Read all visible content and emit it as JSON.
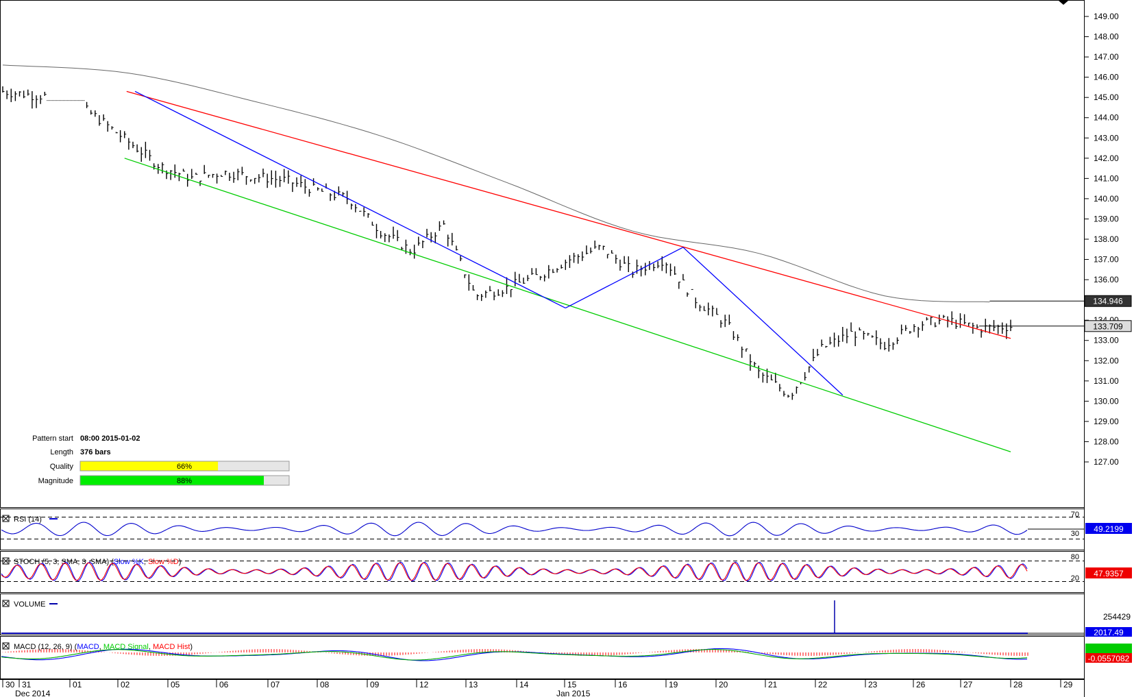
{
  "chart_data": {
    "type": "line",
    "instrument_note": "",
    "price_axis": {
      "ticks": [
        "149.00",
        "148.00",
        "147.00",
        "146.00",
        "145.00",
        "144.00",
        "143.00",
        "142.00",
        "141.00",
        "140.00",
        "139.00",
        "138.00",
        "137.00",
        "136.00",
        "135.00",
        "134.00",
        "133.00",
        "132.00",
        "131.00",
        "130.00",
        "129.00",
        "128.00",
        "127.00"
      ],
      "range": [
        126.0,
        149.6
      ]
    },
    "price_markers": [
      {
        "label": "134.946",
        "value": 134.946,
        "style": "dark"
      },
      {
        "label": "133.709",
        "value": 133.709,
        "style": "light"
      }
    ],
    "date_axis": {
      "labels": [
        "30",
        "31",
        "01",
        "02",
        "05",
        "06",
        "07",
        "08",
        "09",
        "12",
        "13",
        "14",
        "15",
        "16",
        "19",
        "20",
        "21",
        "22",
        "23",
        "26",
        "27",
        "28",
        "29"
      ],
      "month_labels": [
        "Dec 2014",
        "Jan 2015"
      ]
    },
    "series": [
      {
        "name": "Price (bars)",
        "x": [
          0,
          15,
          30,
          45,
          60,
          75,
          90,
          105,
          120,
          135,
          150,
          165,
          180,
          195,
          210,
          225,
          240,
          255,
          270,
          285,
          300,
          315,
          330,
          345,
          360,
          375,
          390,
          405,
          420,
          435,
          450,
          465,
          480
        ],
        "values": [
          145.3,
          145.1,
          145.0,
          144.0,
          142.8,
          141.6,
          141.0,
          141.3,
          141.1,
          140.9,
          140.4,
          140.0,
          138.4,
          137.4,
          138.7,
          135.2,
          135.6,
          136.2,
          137.0,
          137.6,
          136.4,
          137.0,
          135.0,
          133.8,
          131.4,
          130.3,
          132.6,
          133.4,
          132.8,
          133.8,
          134.0,
          133.6,
          133.7
        ]
      },
      {
        "name": "Moving average",
        "x": [
          0,
          60,
          120,
          180,
          240,
          300,
          360,
          420,
          470
        ],
        "values": [
          146.6,
          146.2,
          144.8,
          143.1,
          140.8,
          138.4,
          137.3,
          135.2,
          134.9
        ]
      }
    ],
    "pattern_lines": [
      {
        "name": "Resistance",
        "color": "#ff0000",
        "from": [
          59,
          145.3
        ],
        "to": [
          480,
          133.1
        ]
      },
      {
        "name": "Support",
        "color": "#00cc00",
        "from": [
          58,
          142.0
        ],
        "to": [
          480,
          127.5
        ]
      },
      {
        "name": "Wave 1",
        "color": "#0000ff",
        "from": [
          63,
          145.3
        ],
        "to": [
          268,
          134.6
        ]
      },
      {
        "name": "Wave 2",
        "color": "#0000ff",
        "from": [
          268,
          134.6
        ],
        "to": [
          324,
          137.6
        ]
      },
      {
        "name": "Wave 3",
        "color": "#0000ff",
        "from": [
          324,
          137.6
        ],
        "to": [
          400,
          130.3
        ]
      }
    ],
    "pattern_info": {
      "pattern_start_label": "Pattern start",
      "pattern_start_value": "08:00 2015-01-02",
      "length_label": "Length",
      "length_value": "376 bars",
      "quality_label": "Quality",
      "quality_value": "66%",
      "quality_fraction": 0.66,
      "magnitude_label": "Magnitude",
      "magnitude_value": "88%",
      "magnitude_fraction": 0.88
    },
    "indicators": {
      "rsi": {
        "title": "RSI (14)",
        "levels": [
          "70",
          "30"
        ],
        "level_values": [
          70,
          30
        ],
        "current_label": "49.2199",
        "current": 49.2199
      },
      "stoch": {
        "title_prefix": "STOCH (5, 3, SMA, 3, SMA)",
        "k_label": "Slow %K",
        "d_label": "Slow %D",
        "levels": [
          "80",
          "20"
        ],
        "level_values": [
          80,
          20
        ],
        "current_label": "47.9357",
        "current": 47.9357
      },
      "volume": {
        "title": "VOLUME",
        "axis_label": "254429",
        "current_label": "2017.49",
        "current": 2017.49
      },
      "macd": {
        "title_prefix": "MACD (12, 26, 9)",
        "macd_label": "MACD",
        "signal_label": "MACD Signal",
        "hist_label": "MACD Hist",
        "current_label": "-0.0557082",
        "current": -0.0557082
      }
    },
    "colors": {
      "price": "#000000",
      "moving_average": "#666666",
      "resistance": "#ff0000",
      "support": "#00cc00",
      "wave": "#0000ff",
      "quality_fill": "#ffff00",
      "magnitude_fill": "#00ee00",
      "rsi": "#0000cc",
      "stoch_k": "#0000ff",
      "stoch_d": "#ff0000",
      "volume": "#0000aa",
      "macd": "#0000ff",
      "macd_signal": "#00aa00",
      "macd_hist": "#ff0000"
    },
    "grid": false
  }
}
